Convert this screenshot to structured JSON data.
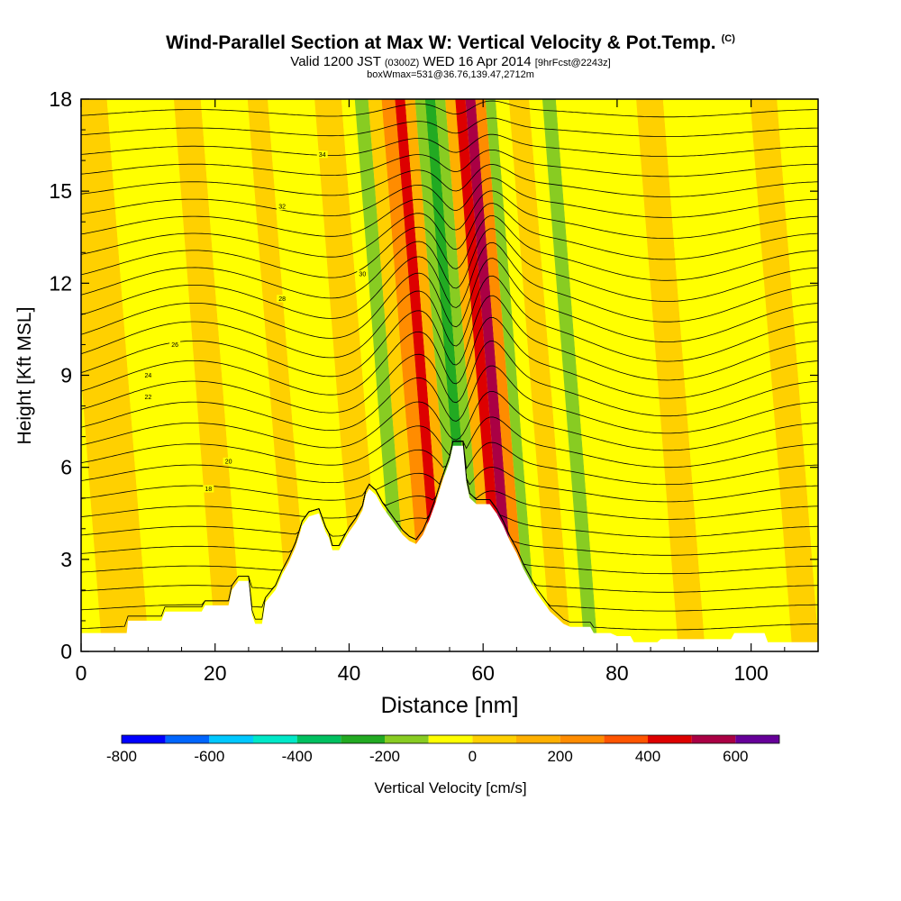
{
  "title": {
    "main": "Wind-Parallel Section at Max W: Vertical Velocity & Pot.Temp.",
    "main_badge": "(C)",
    "valid_prefix": "Valid 1200 JST",
    "valid_zulu": "(0300Z)",
    "valid_date": "WED 16 Apr 2014",
    "forecast": "[9hrFcst@2243z]",
    "box": "boxWmax=531@36.76,139.47,2712m"
  },
  "chart_data": {
    "type": "heatmap",
    "xlabel": "Distance [nm]",
    "ylabel": "Height [Kft MSL]",
    "xlim": [
      0,
      110
    ],
    "ylim": [
      0,
      18
    ],
    "x_ticks": [
      0,
      20,
      40,
      60,
      80,
      100
    ],
    "y_ticks": [
      0,
      3,
      6,
      9,
      12,
      15,
      18
    ],
    "terrain_kft": [
      [
        0,
        0.6
      ],
      [
        6.8,
        0.6
      ],
      [
        7,
        1
      ],
      [
        12,
        1
      ],
      [
        12.5,
        1.3
      ],
      [
        18,
        1.3
      ],
      [
        18.5,
        1.5
      ],
      [
        22,
        1.5
      ],
      [
        22.5,
        2
      ],
      [
        23.5,
        2.3
      ],
      [
        25,
        2.3
      ],
      [
        25.5,
        1.2
      ],
      [
        26,
        0.9
      ],
      [
        27,
        0.9
      ],
      [
        27.5,
        1.6
      ],
      [
        29,
        2
      ],
      [
        30,
        2.5
      ],
      [
        31,
        2.9
      ],
      [
        32,
        3.4
      ],
      [
        33,
        4.1
      ],
      [
        34,
        4.4
      ],
      [
        35.5,
        4.5
      ],
      [
        36,
        4.2
      ],
      [
        36.5,
        3.9
      ],
      [
        37,
        3.7
      ],
      [
        37.5,
        3.3
      ],
      [
        38.5,
        3.3
      ],
      [
        39,
        3.5
      ],
      [
        40,
        3.9
      ],
      [
        41,
        4.2
      ],
      [
        42,
        4.6
      ],
      [
        42.5,
        5.1
      ],
      [
        43,
        5.3
      ],
      [
        44,
        5.1
      ],
      [
        45,
        4.7
      ],
      [
        46,
        4.4
      ],
      [
        47,
        4.1
      ],
      [
        48,
        3.8
      ],
      [
        49,
        3.6
      ],
      [
        50,
        3.5
      ],
      [
        51,
        3.8
      ],
      [
        52,
        4.3
      ],
      [
        53,
        4.9
      ],
      [
        54,
        5.6
      ],
      [
        55,
        6.2
      ],
      [
        55.5,
        6.7
      ],
      [
        57,
        6.7
      ],
      [
        57.5,
        5.5
      ],
      [
        58,
        5.0
      ],
      [
        59,
        4.8
      ],
      [
        61,
        4.8
      ],
      [
        62,
        4.5
      ],
      [
        63,
        4.1
      ],
      [
        64,
        3.6
      ],
      [
        65,
        3.2
      ],
      [
        66,
        2.7
      ],
      [
        67,
        2.3
      ],
      [
        68,
        1.9
      ],
      [
        69,
        1.6
      ],
      [
        70,
        1.3
      ],
      [
        71,
        1.1
      ],
      [
        72,
        0.9
      ],
      [
        73,
        0.8
      ],
      [
        76,
        0.8
      ],
      [
        76.5,
        0.6
      ],
      [
        79,
        0.6
      ],
      [
        80,
        0.5
      ],
      [
        82,
        0.5
      ],
      [
        82.5,
        0.3
      ],
      [
        86,
        0.3
      ],
      [
        86.5,
        0.4
      ],
      [
        97,
        0.4
      ],
      [
        97.5,
        0.6
      ],
      [
        102,
        0.6
      ],
      [
        102.5,
        0.3
      ],
      [
        110,
        0.3
      ]
    ],
    "w_colorbar": {
      "label": "Vertical Velocity [cm/s]",
      "tick_values": [
        -800,
        -600,
        -400,
        -200,
        0,
        200,
        400,
        600
      ],
      "tick_labels": [
        "-800",
        "-600",
        "-400",
        "-200",
        "0",
        "200",
        "400",
        "600"
      ],
      "range": [
        -800,
        700
      ],
      "bins": [
        {
          "min": -800,
          "max": -700,
          "color": "#0000ff"
        },
        {
          "min": -700,
          "max": -600,
          "color": "#0066ff"
        },
        {
          "min": -600,
          "max": -500,
          "color": "#00c8ff"
        },
        {
          "min": -500,
          "max": -400,
          "color": "#00e8c8"
        },
        {
          "min": -400,
          "max": -300,
          "color": "#00c060"
        },
        {
          "min": -300,
          "max": -200,
          "color": "#22aa22"
        },
        {
          "min": -200,
          "max": -100,
          "color": "#88cc22"
        },
        {
          "min": -100,
          "max": 0,
          "color": "#ffff00"
        },
        {
          "min": 0,
          "max": 100,
          "color": "#ffd000"
        },
        {
          "min": 100,
          "max": 200,
          "color": "#ffb000"
        },
        {
          "min": 200,
          "max": 300,
          "color": "#ff8c00"
        },
        {
          "min": 300,
          "max": 400,
          "color": "#ff5500"
        },
        {
          "min": 400,
          "max": 500,
          "color": "#dd0000"
        },
        {
          "min": 500,
          "max": 600,
          "color": "#aa0044"
        },
        {
          "min": 600,
          "max": 700,
          "color": "#660099"
        }
      ]
    },
    "w_field_cm_s": [
      {
        "x0": 0,
        "x1": 7,
        "w": 30
      },
      {
        "x0": 7,
        "x1": 17,
        "w": -40
      },
      {
        "x0": 17,
        "x1": 21,
        "w": 40
      },
      {
        "x0": 21,
        "x1": 28,
        "w": -40
      },
      {
        "x0": 28,
        "x1": 31,
        "w": 30
      },
      {
        "x0": 31,
        "x1": 38,
        "w": -40
      },
      {
        "x0": 38,
        "x1": 42,
        "w": 40
      },
      {
        "x0": 42,
        "x1": 44,
        "w": -60
      },
      {
        "x0": 44,
        "x1": 46,
        "w": -180
      },
      {
        "x0": 46,
        "x1": 48,
        "w": 60
      },
      {
        "x0": 48,
        "x1": 50,
        "w": 250
      },
      {
        "x0": 50,
        "x1": 51.5,
        "w": 450
      },
      {
        "x0": 51.5,
        "x1": 53,
        "w": 150
      },
      {
        "x0": 53,
        "x1": 54.5,
        "w": -150
      },
      {
        "x0": 54.5,
        "x1": 56,
        "w": -280
      },
      {
        "x0": 56,
        "x1": 57.5,
        "w": -180
      },
      {
        "x0": 57.5,
        "x1": 59,
        "w": 150
      },
      {
        "x0": 59,
        "x1": 60.5,
        "w": 450
      },
      {
        "x0": 60.5,
        "x1": 62,
        "w": 531
      },
      {
        "x0": 62,
        "x1": 63.5,
        "w": 250
      },
      {
        "x0": 63.5,
        "x1": 65,
        "w": -150
      },
      {
        "x0": 65,
        "x1": 67,
        "w": -80
      },
      {
        "x0": 67,
        "x1": 70,
        "w": 40
      },
      {
        "x0": 70,
        "x1": 72,
        "w": -40
      },
      {
        "x0": 72,
        "x1": 74,
        "w": -120
      },
      {
        "x0": 74,
        "x1": 86,
        "w": -40
      },
      {
        "x0": 86,
        "x1": 90,
        "w": 80
      },
      {
        "x0": 90,
        "x1": 103,
        "w": -40
      },
      {
        "x0": 103,
        "x1": 107,
        "w": 40
      },
      {
        "x0": 107,
        "x1": 110,
        "w": -40
      }
    ],
    "theta_contours": [
      {
        "label": "18",
        "y": 5.3,
        "label_x": 19,
        "amp": 0.6
      },
      {
        "label": "20",
        "y": 6.2,
        "label_x": 22,
        "amp": 0.9
      },
      {
        "label": "22",
        "y": 8.3,
        "label_x": 10,
        "amp": 1.6
      },
      {
        "label": "24",
        "y": 9.0,
        "label_x": 10,
        "amp": 1.8
      },
      {
        "label": "26",
        "y": 10.0,
        "label_x": 14,
        "amp": 2.0
      },
      {
        "label": "28",
        "y": 11.5,
        "label_x": 30,
        "amp": 1.6
      },
      {
        "label": "30",
        "y": 12.3,
        "label_x": 42,
        "amp": 1.3
      },
      {
        "label": "32",
        "y": 14.5,
        "label_x": 30,
        "amp": 0.9
      },
      {
        "label": "34",
        "y": 16.2,
        "label_x": 36,
        "amp": 0.7
      }
    ]
  }
}
